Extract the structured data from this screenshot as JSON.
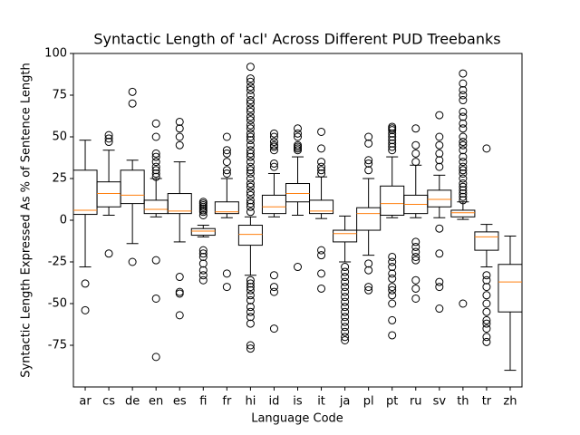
{
  "chart_data": {
    "type": "box",
    "title": "Syntactic Length of 'acl' Across Different PUD Treebanks",
    "x_label": "Language Code",
    "y_label": "Syntactic Length Expressed As % of Sentence Length",
    "categories": [
      "ar",
      "cs",
      "de",
      "en",
      "es",
      "fi",
      "fr",
      "hi",
      "id",
      "is",
      "it",
      "ja",
      "pl",
      "pt",
      "ru",
      "sv",
      "th",
      "tr",
      "zh"
    ],
    "box_color": "#000000",
    "median_color": "#ff7f0e",
    "ylim": [
      -100,
      100
    ],
    "yticks": [
      -75,
      -50,
      -25,
      0,
      25,
      50,
      75,
      100
    ],
    "boxes": [
      {
        "whislo": -28,
        "q1": 3.5,
        "med": 6,
        "q3": 30,
        "whishi": 48,
        "fliers": [
          -38,
          -54
        ]
      },
      {
        "whislo": 3,
        "q1": 8,
        "med": 16,
        "q3": 23,
        "whishi": 42,
        "fliers": [
          51,
          49,
          47,
          -20
        ]
      },
      {
        "whislo": -14,
        "q1": 10,
        "med": 15,
        "q3": 30,
        "whishi": 36,
        "fliers": [
          77,
          70,
          -25
        ]
      },
      {
        "whislo": 2,
        "q1": 4,
        "med": 6.5,
        "q3": 12,
        "whishi": 25,
        "fliers": [
          58,
          50,
          40,
          38,
          35,
          32,
          30,
          28,
          26,
          -24,
          -47,
          -82
        ]
      },
      {
        "whislo": -13,
        "q1": 4,
        "med": 5.5,
        "q3": 16,
        "whishi": 35,
        "fliers": [
          59,
          55,
          50,
          45,
          -34,
          -43,
          -44,
          -57
        ]
      },
      {
        "whislo": -10,
        "q1": -9,
        "med": -6.5,
        "q3": -5,
        "whishi": -3,
        "fliers": [
          11,
          10,
          9,
          8,
          7,
          6,
          5,
          3,
          -18,
          -20,
          -22,
          -26,
          -30,
          -33,
          -36
        ]
      },
      {
        "whislo": 1.5,
        "q1": 4,
        "med": 5,
        "q3": 11,
        "whishi": 25,
        "fliers": [
          50,
          42,
          40,
          35,
          30,
          28,
          -32,
          -40
        ]
      },
      {
        "whislo": -33,
        "q1": -15,
        "med": -8.5,
        "q3": -3,
        "whishi": 2,
        "fliers": [
          92,
          85,
          83,
          80,
          78,
          75,
          72,
          70,
          67,
          65,
          62,
          60,
          57,
          55,
          52,
          50,
          48,
          45,
          42,
          40,
          38,
          35,
          32,
          30,
          28,
          25,
          22,
          20,
          17,
          15,
          12,
          10,
          8,
          5,
          -36,
          -38,
          -40,
          -42,
          -45,
          -48,
          -52,
          -55,
          -58,
          -62,
          -75,
          -77
        ]
      },
      {
        "whislo": 2,
        "q1": 4,
        "med": 8,
        "q3": 15,
        "whishi": 28,
        "fliers": [
          52,
          50,
          47,
          45,
          44,
          42,
          34,
          32,
          -33,
          -40,
          -43,
          -65
        ]
      },
      {
        "whislo": 3,
        "q1": 11,
        "med": 16,
        "q3": 22,
        "whishi": 38,
        "fliers": [
          55,
          52,
          50,
          45,
          44,
          43,
          42,
          -28
        ]
      },
      {
        "whislo": 1,
        "q1": 4,
        "med": 5.5,
        "q3": 12,
        "whishi": 26,
        "fliers": [
          53,
          43,
          35,
          32,
          30,
          28,
          -18,
          -21,
          -32,
          -41
        ]
      },
      {
        "whislo": -25,
        "q1": -13,
        "med": -8,
        "q3": -6,
        "whishi": 2.5,
        "fliers": [
          -28,
          -31,
          -34,
          -37,
          -40,
          -43,
          -46,
          -49,
          -52,
          -55,
          -58,
          -61,
          -64,
          -67,
          -70,
          -72
        ]
      },
      {
        "whislo": -21,
        "q1": -6,
        "med": 4,
        "q3": 7.5,
        "whishi": 25,
        "fliers": [
          50,
          46,
          36,
          34,
          30,
          -26,
          -30,
          -40,
          -42
        ]
      },
      {
        "whislo": 1.5,
        "q1": 3,
        "med": 10,
        "q3": 20.5,
        "whishi": 38,
        "fliers": [
          56,
          55,
          54,
          52,
          50,
          48,
          46,
          44,
          42,
          -22,
          -25,
          -28,
          -32,
          -35,
          -40,
          -42,
          -45,
          -50,
          -60,
          -69
        ]
      },
      {
        "whislo": 1.5,
        "q1": 4,
        "med": 9.5,
        "q3": 15,
        "whishi": 33,
        "fliers": [
          55,
          45,
          40,
          35,
          -13,
          -16,
          -19,
          -22,
          -24,
          -36,
          -41,
          -47
        ]
      },
      {
        "whislo": 1.5,
        "q1": 8,
        "med": 12.5,
        "q3": 18,
        "whishi": 27,
        "fliers": [
          63,
          50,
          45,
          40,
          36,
          32,
          -5,
          -20,
          -37,
          -40,
          -53
        ]
      },
      {
        "whislo": 0.5,
        "q1": 2,
        "med": 4.5,
        "q3": 6,
        "whishi": 11,
        "fliers": [
          88,
          82,
          78,
          75,
          72,
          65,
          62,
          58,
          55,
          50,
          47,
          45,
          42,
          38,
          35,
          32,
          30,
          28,
          25,
          22,
          20,
          18,
          16,
          14,
          12,
          -50
        ]
      },
      {
        "whislo": -28,
        "q1": -18,
        "med": -10,
        "q3": -7,
        "whishi": -2.5,
        "fliers": [
          43,
          -33,
          -36,
          -40,
          -45,
          -50,
          -55,
          -60,
          -62,
          -65,
          -70,
          -73
        ]
      },
      {
        "whislo": -90,
        "q1": -55,
        "med": -37,
        "q3": -26.5,
        "whishi": -9.5,
        "fliers": []
      }
    ]
  }
}
